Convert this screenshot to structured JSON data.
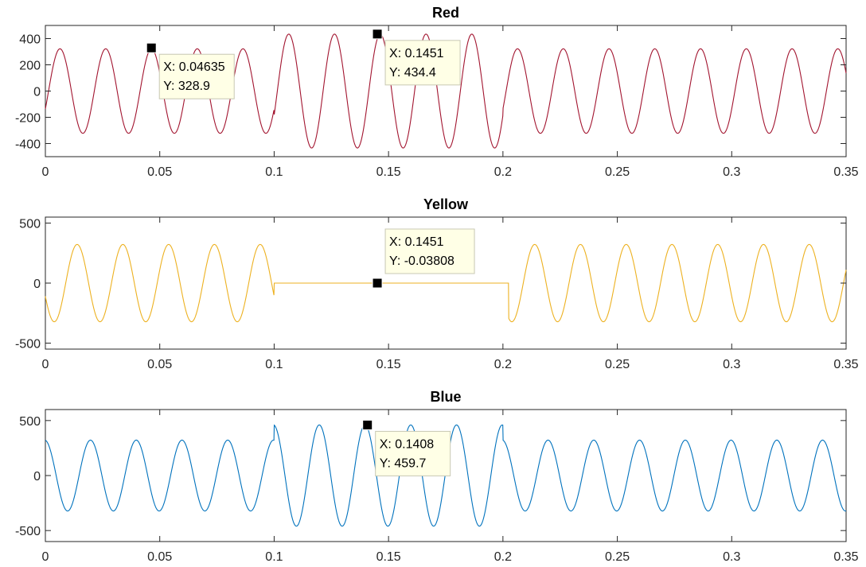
{
  "chart_data": [
    {
      "type": "line",
      "title": "Red",
      "color": "#a2142f",
      "xlim": [
        0,
        0.35
      ],
      "ylim": [
        -500,
        500
      ],
      "xticks": [
        "0",
        "0.05",
        "0.1",
        "0.15",
        "0.2",
        "0.25",
        "0.3",
        "0.35"
      ],
      "yticks": [
        "400",
        "200",
        "0",
        "-200",
        "-400"
      ],
      "ytick_values": [
        400,
        200,
        0,
        -200,
        -400
      ],
      "grid": false,
      "segments": [
        {
          "x_start": 0,
          "x_end": 0.1,
          "freq_hz": 50,
          "amplitude": 322,
          "phase_deg": -25
        },
        {
          "x_start": 0.1,
          "x_end": 0.2,
          "freq_hz": 50,
          "amplitude": 434,
          "phase_deg": -25
        },
        {
          "x_start": 0.2,
          "x_end": 0.35,
          "freq_hz": 50,
          "amplitude": 322,
          "phase_deg": -25
        }
      ],
      "datatips": [
        {
          "x": 0.04635,
          "y": 328.9,
          "x_text": "X: 0.04635",
          "y_text": "Y: 328.9"
        },
        {
          "x": 0.1451,
          "y": 434.4,
          "x_text": "X: 0.1451",
          "y_text": "Y: 434.4"
        }
      ]
    },
    {
      "type": "line",
      "title": "Yellow",
      "color": "#edb120",
      "xlim": [
        0,
        0.35
      ],
      "ylim": [
        -550,
        550
      ],
      "xticks": [
        "0",
        "0.05",
        "0.1",
        "0.15",
        "0.2",
        "0.25",
        "0.3",
        "0.35"
      ],
      "yticks": [
        "500",
        "0",
        "-500"
      ],
      "ytick_values": [
        500,
        0,
        -500
      ],
      "grid": false,
      "segments": [
        {
          "x_start": 0,
          "x_end": 0.1,
          "freq_hz": 50,
          "amplitude": 322,
          "phase_deg": 200
        },
        {
          "x_start": 0.1,
          "x_end": 0.2025,
          "freq_hz": 0,
          "amplitude": 0,
          "phase_deg": 0
        },
        {
          "x_start": 0.2025,
          "x_end": 0.35,
          "freq_hz": 50,
          "amplitude": 322,
          "phase_deg": 200
        }
      ],
      "datatips": [
        {
          "x": 0.1451,
          "y": -0.03808,
          "x_text": "X: 0.1451",
          "y_text": "Y: -0.03808"
        }
      ]
    },
    {
      "type": "line",
      "title": "Blue",
      "color": "#0072bd",
      "xlim": [
        0,
        0.35
      ],
      "ylim": [
        -600,
        600
      ],
      "xticks": [
        "0",
        "0.05",
        "0.1",
        "0.15",
        "0.2",
        "0.25",
        "0.3",
        "0.35"
      ],
      "yticks": [
        "500",
        "0",
        "-500"
      ],
      "ytick_values": [
        500,
        0,
        -500
      ],
      "grid": false,
      "segments": [
        {
          "x_start": 0,
          "x_end": 0.1,
          "freq_hz": 50,
          "amplitude": 322,
          "phase_deg": 95
        },
        {
          "x_start": 0.1,
          "x_end": 0.2,
          "freq_hz": 50,
          "amplitude": 460,
          "phase_deg": 95
        },
        {
          "x_start": 0.2,
          "x_end": 0.35,
          "freq_hz": 50,
          "amplitude": 322,
          "phase_deg": 95
        }
      ],
      "datatips": [
        {
          "x": 0.1408,
          "y": 459.7,
          "x_text": "X: 0.1408",
          "y_text": "Y: 459.7"
        }
      ]
    }
  ]
}
